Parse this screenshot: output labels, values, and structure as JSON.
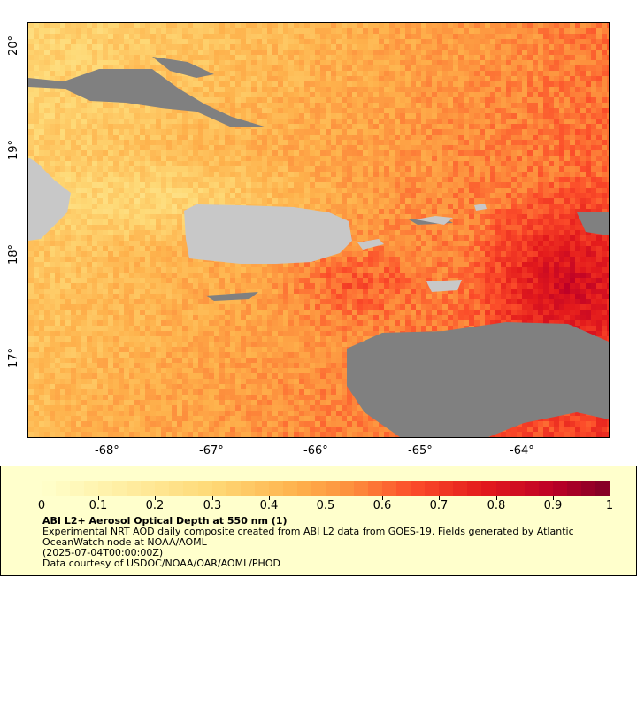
{
  "map": {
    "lon_ticks": [
      "-68°",
      "-67°",
      "-66°",
      "-65°",
      "-64°"
    ],
    "lat_ticks": [
      "20°",
      "19°",
      "18°",
      "17°"
    ],
    "lon_range": [
      -68.75,
      -63.2
    ],
    "lat_range": [
      16.3,
      20.25
    ],
    "land_color": "#c8c8c8",
    "cloud_color": "#808080"
  },
  "legend": {
    "title": "ABI L2+ Aerosol Optical Depth at 550 nm (1)",
    "description": "Experimental NRT AOD daily composite created from ABI L2 data from GOES-19. Fields generated by Atlantic OceanWatch node at NOAA/AOML",
    "time": "(2025-07-04T00:00:00Z)",
    "credit": "Data courtesy of USDOC/NOAA/OAR/AOML/PHOD",
    "scale_labels": [
      "0",
      "0.1",
      "0.2",
      "0.3",
      "0.4",
      "0.5",
      "0.6",
      "0.7",
      "0.8",
      "0.9",
      "1"
    ],
    "scale_min": 0,
    "scale_max": 1,
    "colormap": "YlOrRd"
  }
}
